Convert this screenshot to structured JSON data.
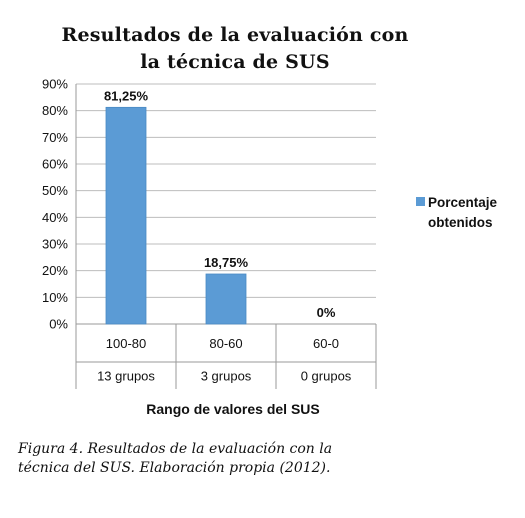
{
  "chart_data": {
    "type": "bar",
    "title_lines": [
      "Resultados de la evaluación con",
      "la técnica de SUS"
    ],
    "xlabel": "Rango de valores del SUS",
    "ylabel": "",
    "ylim": [
      0,
      90
    ],
    "y_ticks": [
      "0%",
      "10%",
      "20%",
      "30%",
      "40%",
      "50%",
      "60%",
      "70%",
      "80%",
      "90%"
    ],
    "categories": [
      "100-80",
      "80-60",
      "60-0"
    ],
    "sub_categories": [
      "13 grupos",
      "3 grupos",
      "0 grupos"
    ],
    "series": [
      {
        "name": "Porcentaje obtenidos",
        "values": [
          81.25,
          18.75,
          0
        ],
        "data_labels": [
          "81,25%",
          "18,75%",
          "0%"
        ]
      }
    ],
    "legend": {
      "position": "right",
      "lines": [
        "Porcentaje",
        "obtenidos"
      ]
    },
    "grid": true,
    "bar_color": "#5b9bd5",
    "grid_color": "#bdbdbd"
  },
  "caption_lines": [
    "Figura 4. Resultados de la evaluación con la",
    "técnica del SUS. Elaboración propia (2012)."
  ]
}
